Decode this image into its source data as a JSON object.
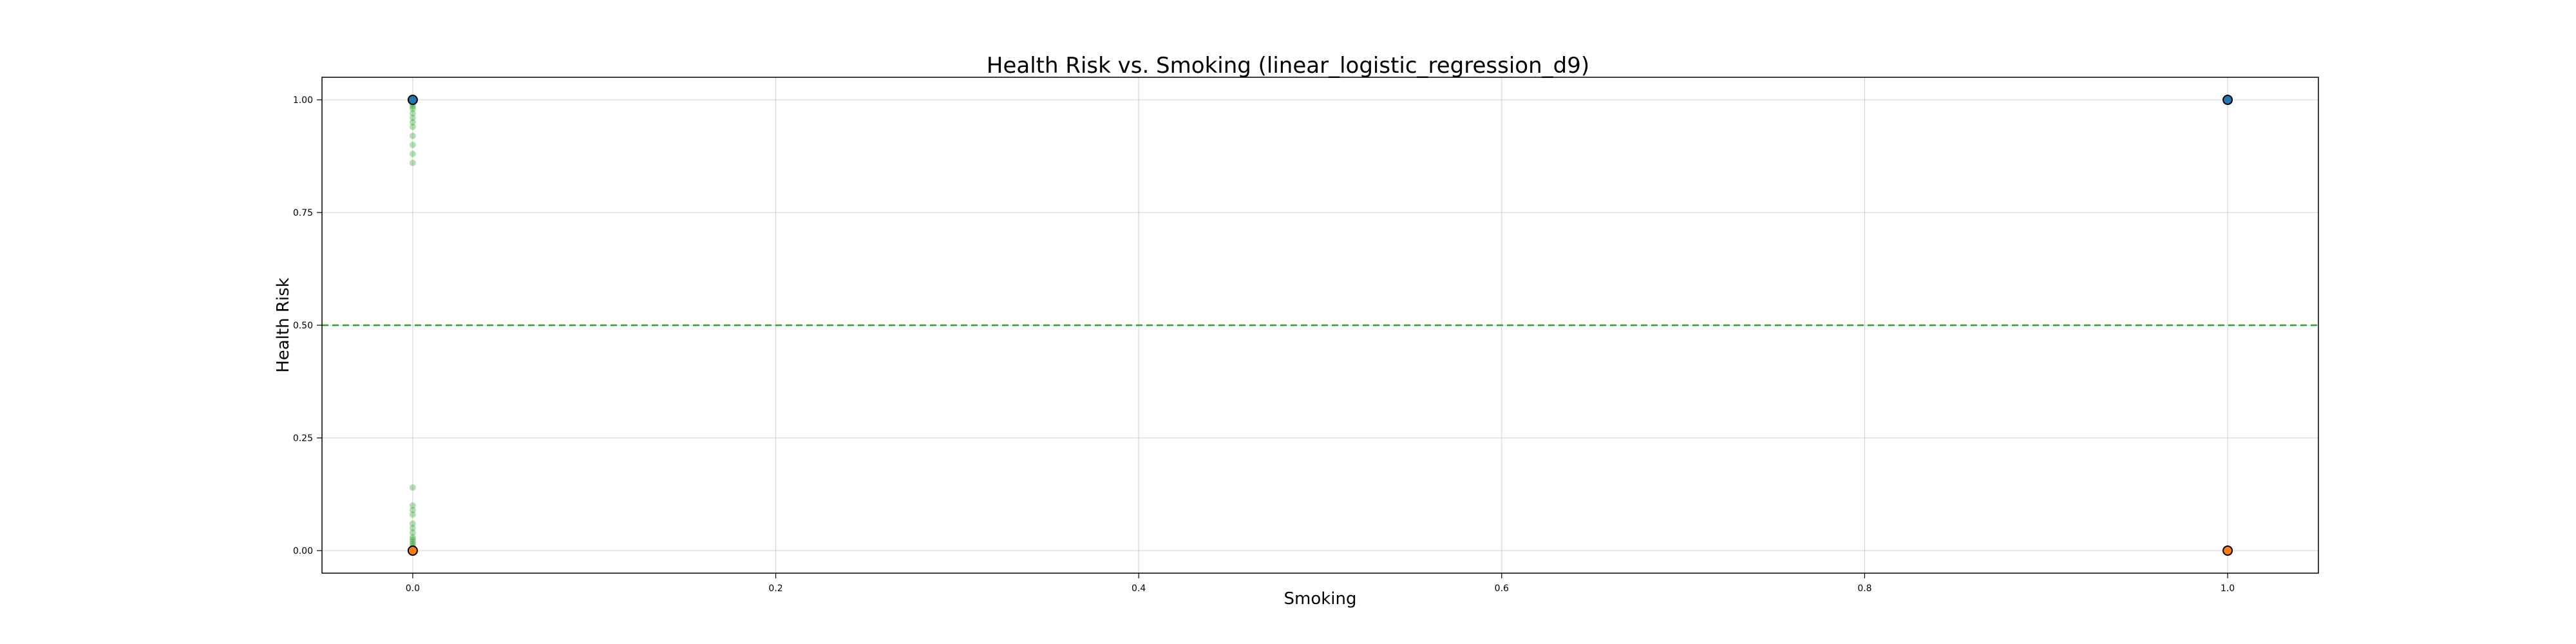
{
  "chart_data": {
    "type": "scatter",
    "title": "Health Risk vs. Smoking (linear_logistic_regression_d9)",
    "xlabel": "Smoking",
    "ylabel": "Health Risk",
    "xlim": [
      -0.05,
      1.05
    ],
    "ylim": [
      -0.05,
      1.05
    ],
    "xticks": [
      {
        "value": 0.0,
        "label": "0.0"
      },
      {
        "value": 0.2,
        "label": "0.2"
      },
      {
        "value": 0.4,
        "label": "0.4"
      },
      {
        "value": 0.6,
        "label": "0.6"
      },
      {
        "value": 0.8,
        "label": "0.8"
      },
      {
        "value": 1.0,
        "label": "1.0"
      }
    ],
    "yticks": [
      {
        "value": 0.0,
        "label": "0.00"
      },
      {
        "value": 0.25,
        "label": "0.25"
      },
      {
        "value": 0.5,
        "label": "0.50"
      },
      {
        "value": 0.75,
        "label": "0.75"
      },
      {
        "value": 1.0,
        "label": "1.00"
      }
    ],
    "grid": true,
    "threshold_line": {
      "y": 0.5,
      "color": "#2ca02c",
      "style": "dashed"
    },
    "series": [
      {
        "kind": "predicted",
        "color": "#2ca02c",
        "points": [
          {
            "x": 0,
            "y": 0.86
          },
          {
            "x": 0,
            "y": 0.88
          },
          {
            "x": 0,
            "y": 0.9
          },
          {
            "x": 0,
            "y": 0.92
          },
          {
            "x": 0,
            "y": 0.94
          },
          {
            "x": 0,
            "y": 0.95
          },
          {
            "x": 0,
            "y": 0.96
          },
          {
            "x": 0,
            "y": 0.97
          },
          {
            "x": 0,
            "y": 0.98
          },
          {
            "x": 0,
            "y": 0.985
          },
          {
            "x": 0,
            "y": 0.99
          },
          {
            "x": 0,
            "y": 0.995
          },
          {
            "x": 0,
            "y": 0.14
          },
          {
            "x": 0,
            "y": 0.1
          },
          {
            "x": 0,
            "y": 0.09
          },
          {
            "x": 0,
            "y": 0.08
          },
          {
            "x": 0,
            "y": 0.06
          },
          {
            "x": 0,
            "y": 0.05
          },
          {
            "x": 0,
            "y": 0.04
          },
          {
            "x": 0,
            "y": 0.03
          },
          {
            "x": 0,
            "y": 0.025
          },
          {
            "x": 0,
            "y": 0.02
          },
          {
            "x": 0,
            "y": 0.015
          },
          {
            "x": 0,
            "y": 0.01
          },
          {
            "x": 0,
            "y": 0.005
          }
        ]
      },
      {
        "kind": "actual",
        "points": [
          {
            "x": 0,
            "y": 1,
            "color": "#1f77b4"
          },
          {
            "x": 0,
            "y": 0,
            "color": "#ff7f0e"
          },
          {
            "x": 1,
            "y": 1,
            "color": "#1f77b4"
          },
          {
            "x": 1,
            "y": 0,
            "color": "#ff7f0e"
          }
        ]
      }
    ]
  }
}
